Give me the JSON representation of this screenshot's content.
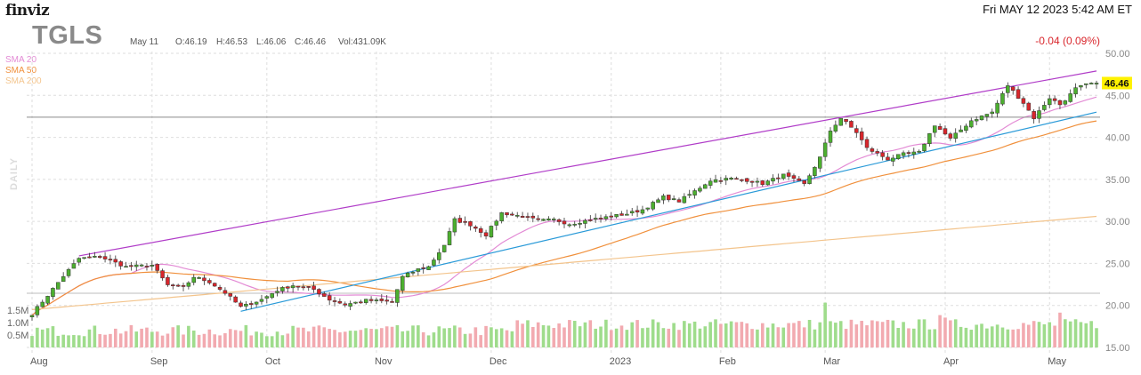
{
  "header": {
    "logo": "finviz",
    "datetime": "Fri MAY 12 2023 5:42 AM ET",
    "ticker": "TGLS",
    "bar_date": "May 11",
    "open": "O:46.19",
    "high": "H:46.53",
    "low": "L:46.06",
    "close": "C:46.46",
    "volume": "Vol:431.09K",
    "change": "-0.04 (0.09%)"
  },
  "legend": {
    "sma20": "SMA 20",
    "sma50": "SMA 50",
    "sma200": "SMA 200"
  },
  "side_label": "DAILY",
  "last_price_label": "46.46",
  "colors": {
    "up": "#4caf2f",
    "down": "#d9262c",
    "vol_up": "#9fdc8c",
    "vol_down": "#f2aab0",
    "sma20": "#e38bd5",
    "sma50": "#f0903c",
    "sma200": "#f3c48c",
    "upper_trend": "#b03cc8",
    "lower_trend": "#2a9ad8",
    "last_price_bg": "#fff200"
  },
  "chart_data": {
    "type": "candlestick",
    "period": "daily",
    "y_price_ticks": [
      50,
      45,
      40,
      35,
      30,
      25,
      20,
      15
    ],
    "price_range": [
      15,
      50
    ],
    "volume_ticks": [
      "1.5M",
      "1.0M",
      "0.5M"
    ],
    "volume_range": [
      0,
      1.5
    ],
    "x_ticks": [
      "Aug",
      "Sep",
      "Oct",
      "Nov",
      "Dec",
      "2023",
      "Feb",
      "Mar",
      "Apr",
      "May"
    ],
    "last_close": 46.46,
    "horizontal_level": 42.4,
    "trendlines": {
      "upper": [
        {
          "date": "2022-08-12",
          "price": 25.9
        },
        {
          "date": "2023-05-12",
          "price": 47.9
        }
      ],
      "lower": [
        {
          "date": "2022-09-26",
          "price": 19.3
        },
        {
          "date": "2023-05-12",
          "price": 43.0
        }
      ]
    },
    "anchors": [
      [
        "2022-08-01",
        19.0
      ],
      [
        "2022-08-04",
        21.2
      ],
      [
        "2022-08-09",
        23.5
      ],
      [
        "2022-08-12",
        25.6
      ],
      [
        "2022-08-18",
        25.8
      ],
      [
        "2022-08-25",
        24.6
      ],
      [
        "2022-09-01",
        24.8
      ],
      [
        "2022-09-06",
        22.4
      ],
      [
        "2022-09-09",
        22.1
      ],
      [
        "2022-09-13",
        23.4
      ],
      [
        "2022-09-16",
        22.8
      ],
      [
        "2022-09-21",
        21.5
      ],
      [
        "2022-09-26",
        19.8
      ],
      [
        "2022-09-30",
        20.7
      ],
      [
        "2022-10-05",
        21.8
      ],
      [
        "2022-10-10",
        22.4
      ],
      [
        "2022-10-14",
        21.9
      ],
      [
        "2022-10-19",
        20.7
      ],
      [
        "2022-10-24",
        20.1
      ],
      [
        "2022-10-28",
        20.6
      ],
      [
        "2022-11-02",
        20.5
      ],
      [
        "2022-11-04",
        20.4
      ],
      [
        "2022-11-08",
        23.4
      ],
      [
        "2022-11-11",
        24.3
      ],
      [
        "2022-11-15",
        24.6
      ],
      [
        "2022-11-18",
        27.2
      ],
      [
        "2022-11-22",
        30.2
      ],
      [
        "2022-11-25",
        29.6
      ],
      [
        "2022-11-30",
        28.4
      ],
      [
        "2022-12-05",
        31.0
      ],
      [
        "2022-12-09",
        30.6
      ],
      [
        "2022-12-14",
        30.1
      ],
      [
        "2022-12-19",
        30.2
      ],
      [
        "2022-12-22",
        29.7
      ],
      [
        "2022-12-28",
        30.2
      ],
      [
        "2023-01-03",
        30.6
      ],
      [
        "2023-01-06",
        30.9
      ],
      [
        "2023-01-11",
        31.4
      ],
      [
        "2023-01-17",
        32.9
      ],
      [
        "2023-01-20",
        32.4
      ],
      [
        "2023-01-25",
        33.6
      ],
      [
        "2023-01-30",
        34.9
      ],
      [
        "2023-02-03",
        35.1
      ],
      [
        "2023-02-08",
        34.9
      ],
      [
        "2023-02-13",
        34.5
      ],
      [
        "2023-02-17",
        35.5
      ],
      [
        "2023-02-23",
        34.4
      ],
      [
        "2023-02-28",
        37.6
      ],
      [
        "2023-03-02",
        40.8
      ],
      [
        "2023-03-06",
        42.3
      ],
      [
        "2023-03-09",
        40.6
      ],
      [
        "2023-03-13",
        38.7
      ],
      [
        "2023-03-17",
        37.4
      ],
      [
        "2023-03-22",
        38.0
      ],
      [
        "2023-03-27",
        38.2
      ],
      [
        "2023-03-30",
        41.5
      ],
      [
        "2023-04-04",
        39.8
      ],
      [
        "2023-04-10",
        42.0
      ],
      [
        "2023-04-14",
        43.0
      ],
      [
        "2023-04-19",
        46.2
      ],
      [
        "2023-04-24",
        44.1
      ],
      [
        "2023-04-26",
        42.3
      ],
      [
        "2023-05-01",
        44.7
      ],
      [
        "2023-05-03",
        43.9
      ],
      [
        "2023-05-05",
        45.1
      ],
      [
        "2023-05-08",
        45.8
      ],
      [
        "2023-05-11",
        46.46
      ]
    ],
    "volume_spikes": [
      [
        "2023-03-01",
        1.8
      ],
      [
        "2023-05-03",
        1.4
      ],
      [
        "2023-03-31",
        1.3
      ],
      [
        "2023-04-03",
        1.2
      ]
    ]
  }
}
